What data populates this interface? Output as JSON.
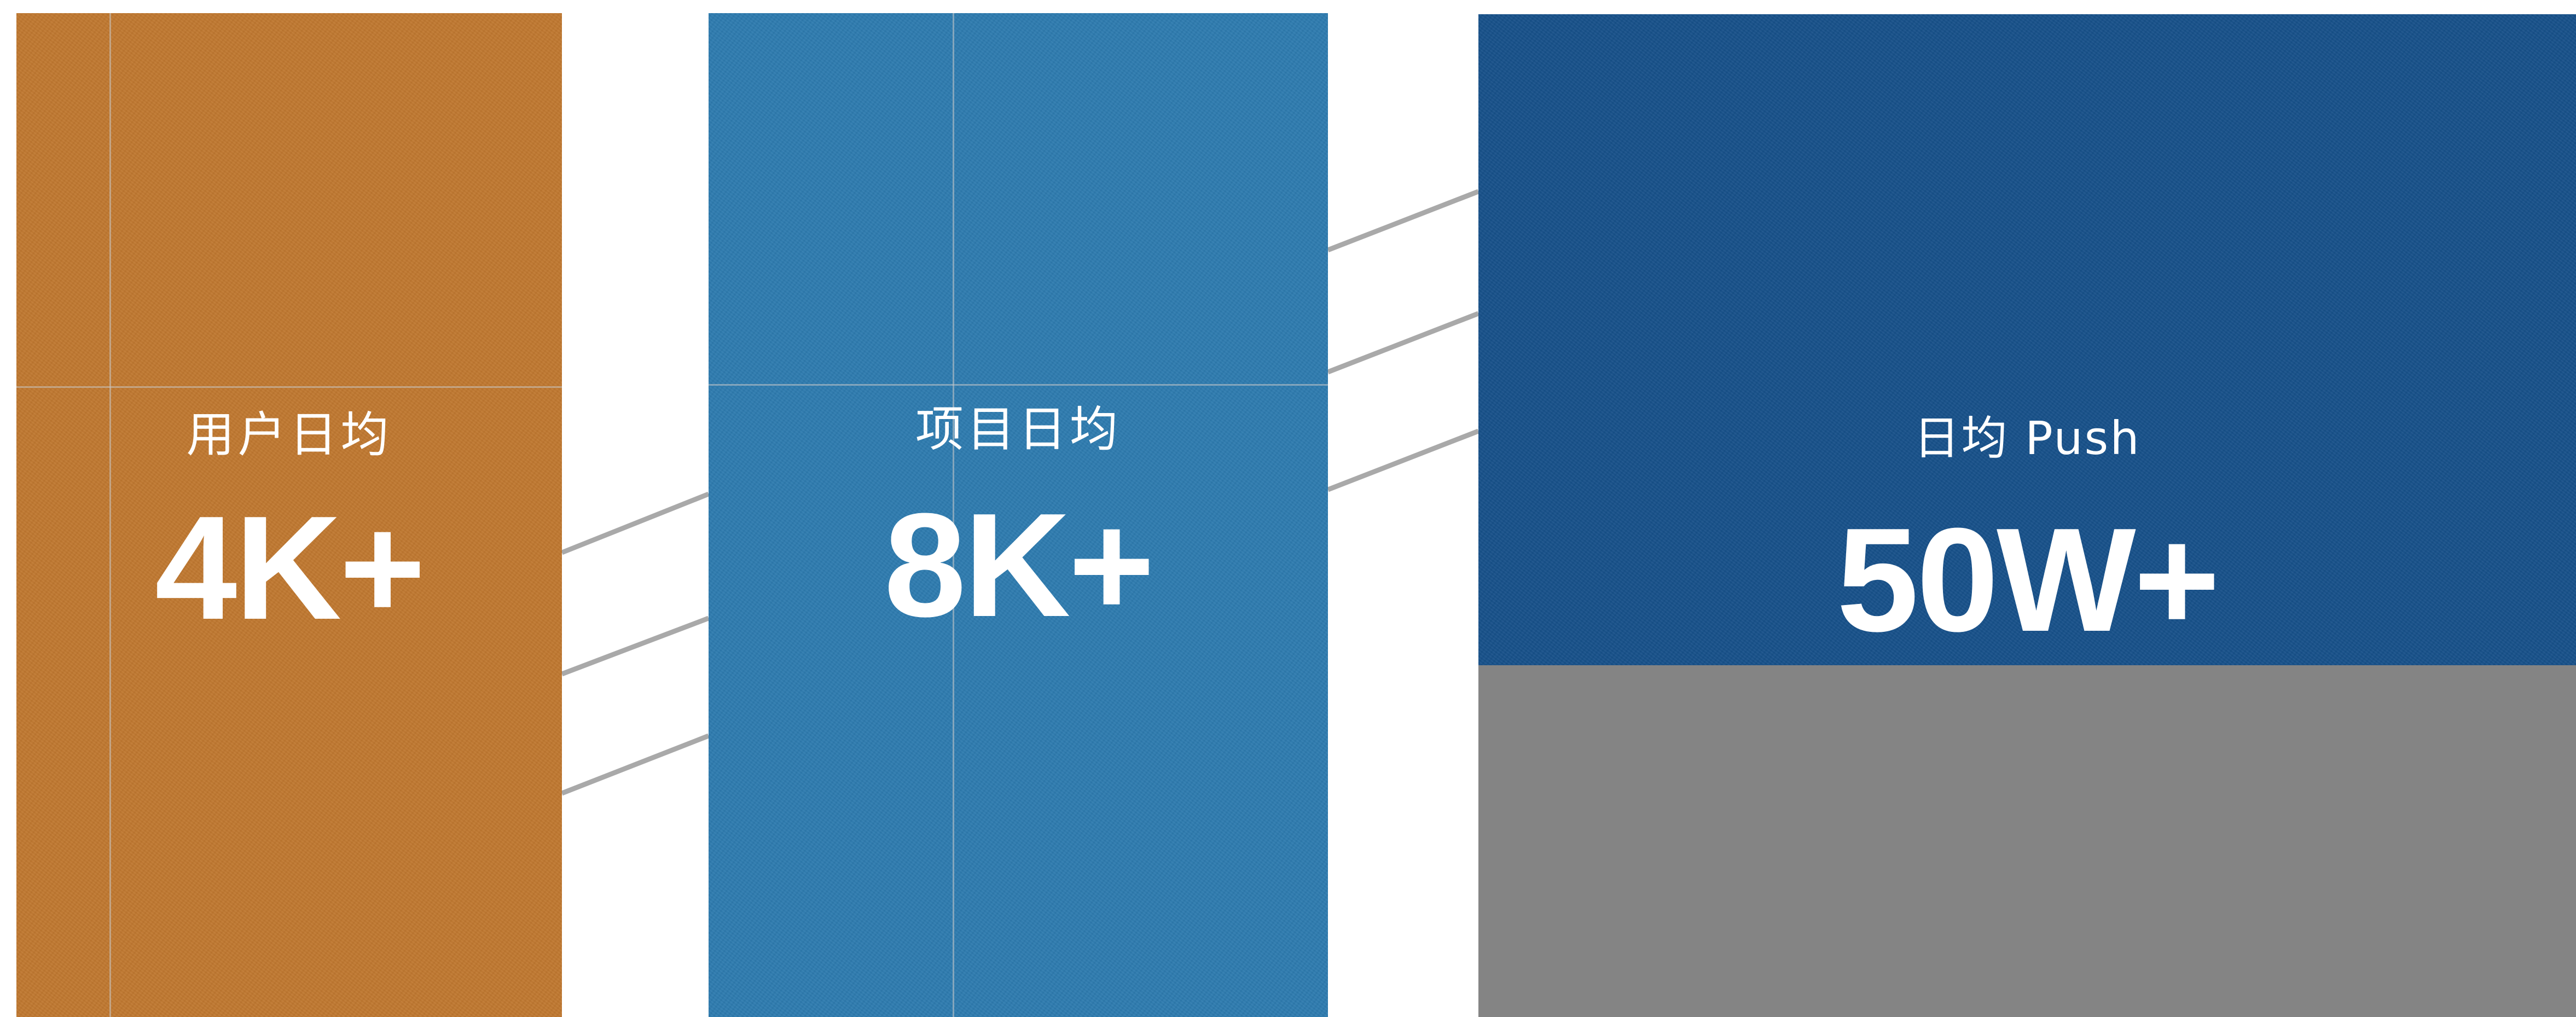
{
  "colors": {
    "users_panel": "#C07830",
    "projects_panel": "#2E7BAF",
    "push_panel": "#17518A",
    "push_lower_panel": "#848484",
    "connector": "#A9A9A9",
    "text": "#FFFFFF"
  },
  "stats": [
    {
      "label": "用户日均",
      "value": "4K+"
    },
    {
      "label": "项目日均",
      "value": "8K+"
    },
    {
      "label": "日均 Push",
      "value": "50W+"
    }
  ]
}
